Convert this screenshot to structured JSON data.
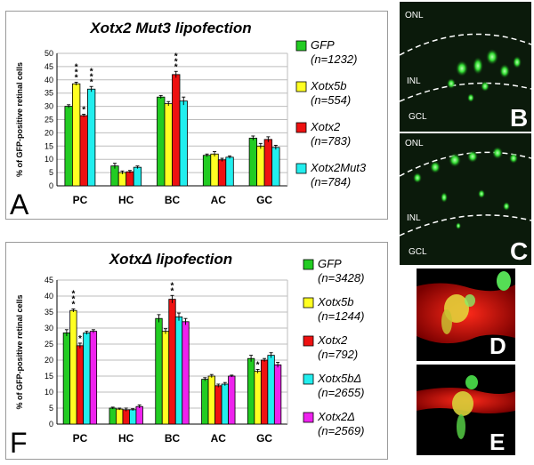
{
  "figure": {
    "panelA": {
      "letter": "A",
      "chart_data": {
        "type": "bar",
        "title": "Xotx2 Mut3 lipofection",
        "ylabel": "% of GFP-positive retinal cells",
        "xlabel": "",
        "ylim": [
          0,
          50
        ],
        "yticks": [
          0,
          5,
          10,
          15,
          20,
          25,
          30,
          35,
          40,
          45,
          50
        ],
        "categories": [
          "PC",
          "HC",
          "BC",
          "AC",
          "GC"
        ],
        "series": [
          {
            "name": "GFP",
            "n": "(n=1232)",
            "color": "#22cc22",
            "values": [
              30,
              7.5,
              33.5,
              11.5,
              18
            ],
            "errors": [
              0.6,
              1,
              0.6,
              0.5,
              0.8
            ]
          },
          {
            "name": "Xotx5b",
            "n": "(n=554)",
            "color": "#ffff22",
            "values": [
              38.5,
              5,
              31,
              12,
              15
            ],
            "errors": [
              0.6,
              0.6,
              0.8,
              0.9,
              1
            ]
          },
          {
            "name": "Xotx2",
            "n": "(n=783)",
            "color": "#ee1111",
            "values": [
              26.5,
              5.3,
              42,
              9.8,
              17.5
            ],
            "errors": [
              0.5,
              0.5,
              1.2,
              0.6,
              1
            ]
          },
          {
            "name": "Xotx2Mut3",
            "n": "(n=784)",
            "color": "#22eeee",
            "values": [
              36.5,
              7,
              32,
              10.8,
              14.5
            ],
            "errors": [
              1,
              0.5,
              1.5,
              0.5,
              0.8
            ]
          }
        ],
        "annotations": [
          {
            "text": "*",
            "category": "PC",
            "series": "Xotx5b",
            "stack": 3
          },
          {
            "text": "*",
            "category": "PC",
            "series": "Xotx2",
            "stack": 1
          },
          {
            "text": "*",
            "category": "PC",
            "series": "Xotx2Mut3",
            "stack": 3
          },
          {
            "text": "*",
            "category": "BC",
            "series": "Xotx2",
            "stack": 3
          }
        ]
      }
    },
    "panelF": {
      "letter": "F",
      "chart_data": {
        "type": "bar",
        "title": "XotxΔ lipofection",
        "ylabel": "% of GFP-positive retinal cells",
        "xlabel": "",
        "ylim": [
          0,
          45
        ],
        "yticks": [
          0,
          5,
          10,
          15,
          20,
          25,
          30,
          35,
          40,
          45
        ],
        "categories": [
          "PC",
          "HC",
          "BC",
          "AC",
          "GC"
        ],
        "series": [
          {
            "name": "GFP",
            "n": "(n=3428)",
            "color": "#22cc22",
            "values": [
              28.5,
              5,
              33,
              14,
              20.5
            ],
            "errors": [
              1,
              0.3,
              1.2,
              0.5,
              1
            ]
          },
          {
            "name": "Xotx5b",
            "n": "(n=1244)",
            "color": "#ffff22",
            "values": [
              35.5,
              4.7,
              29,
              15,
              16.5
            ],
            "errors": [
              0.5,
              0.3,
              0.8,
              0.5,
              0.6
            ]
          },
          {
            "name": "Xotx2",
            "n": "(n=792)",
            "color": "#ee1111",
            "values": [
              24.5,
              4.5,
              39,
              12,
              20
            ],
            "errors": [
              0.8,
              0.5,
              1.2,
              0.5,
              0.5
            ]
          },
          {
            "name": "Xotx5bΔ",
            "n": "(n=2655)",
            "color": "#22eeee",
            "values": [
              28.5,
              4.5,
              33.5,
              12.5,
              21.5
            ],
            "errors": [
              0.5,
              0.3,
              1.2,
              0.5,
              0.8
            ]
          },
          {
            "name": "Xotx2Δ",
            "n": "(n=2569)",
            "color": "#ee22ee",
            "values": [
              29,
              5.5,
              32,
              15,
              18.5
            ],
            "errors": [
              0.5,
              0.5,
              1,
              0.3,
              0.8
            ]
          }
        ],
        "annotations": [
          {
            "text": "*",
            "category": "PC",
            "series": "Xotx5b",
            "stack": 3
          },
          {
            "text": "*",
            "category": "PC",
            "series": "Xotx2",
            "stack": 1
          },
          {
            "text": "*",
            "category": "BC",
            "series": "Xotx2",
            "stack": 2
          },
          {
            "text": "*",
            "category": "GC",
            "series": "Xotx5b",
            "stack": 1
          }
        ]
      }
    },
    "micrographs": {
      "B": {
        "letter": "B",
        "layers": [
          "ONL",
          "INL",
          "GCL"
        ]
      },
      "C": {
        "letter": "C",
        "layers": [
          "ONL",
          "INL",
          "GCL"
        ]
      },
      "D": {
        "letter": "D"
      },
      "E": {
        "letter": "E"
      }
    }
  }
}
